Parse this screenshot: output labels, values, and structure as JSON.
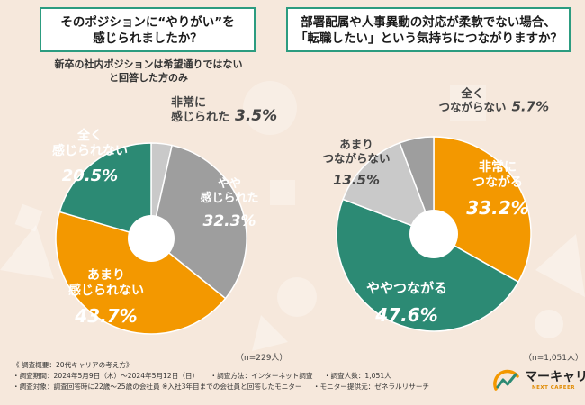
{
  "chart_data": [
    {
      "type": "pie",
      "title": "そのポジションに“やりがい”を感じられましたか？",
      "title_lines": [
        "そのポジションに“やりがい”を",
        "感じられましたか？"
      ],
      "subtitle_lines": [
        "新卒の社内ポジションは希望通りではない",
        "と回答した方のみ"
      ],
      "n_label": "（n=229人）",
      "slices": [
        {
          "label_lines": [
            "非常に",
            "感じられた"
          ],
          "value": 3.5,
          "value_label": "3.5%",
          "color": "#c9c9c9"
        },
        {
          "label_lines": [
            "やや",
            "感じられた"
          ],
          "value": 32.3,
          "value_label": "32.3%",
          "color": "#9e9e9e"
        },
        {
          "label_lines": [
            "あまり",
            "感じられない"
          ],
          "value": 43.7,
          "value_label": "43.7%",
          "color": "#f39800"
        },
        {
          "label_lines": [
            "全く",
            "感じられない"
          ],
          "value": 20.5,
          "value_label": "20.5%",
          "color": "#2c8a74"
        }
      ]
    },
    {
      "type": "pie",
      "title": "部署配属や人事異動の対応が柔軟でない場合、「転職したい」という気持ちにつながりますか？",
      "title_lines": [
        "部署配属や人事異動の対応が柔軟でない場合、",
        "「転職したい」という気持ちにつながりますか？"
      ],
      "n_label": "（n=1,051人）",
      "slices": [
        {
          "label_lines": [
            "非常に",
            "つながる"
          ],
          "value": 33.2,
          "value_label": "33.2%",
          "color": "#f39800"
        },
        {
          "label_lines": [
            "ややつながる"
          ],
          "value": 47.6,
          "value_label": "47.6%",
          "color": "#2c8a74"
        },
        {
          "label_lines": [
            "あまり",
            "つながらない"
          ],
          "value": 13.5,
          "value_label": "13.5%",
          "color": "#c9c9c9"
        },
        {
          "label_lines": [
            "全く",
            "つながらない"
          ],
          "value": 5.7,
          "value_label": "5.7%",
          "color": "#9e9e9e"
        }
      ]
    }
  ],
  "footer": {
    "overview": "《 調査概要：20代キャリアの考え方》",
    "period": "・調査期間：2024年5月9日（木）～2024年5月12日（日）",
    "method": "・調査方法：インターネット調査",
    "respondents": "・調査人数：1,051人",
    "target": "・調査対象：調査回答時に22歳～25歳の会社員 ※入社3年目までの会社員と回答したモニター",
    "provider": "・モニター提供元：ゼネラルリサーチ"
  },
  "logo": {
    "name": "マーキャリ",
    "sub": "NEXT CAREER"
  }
}
